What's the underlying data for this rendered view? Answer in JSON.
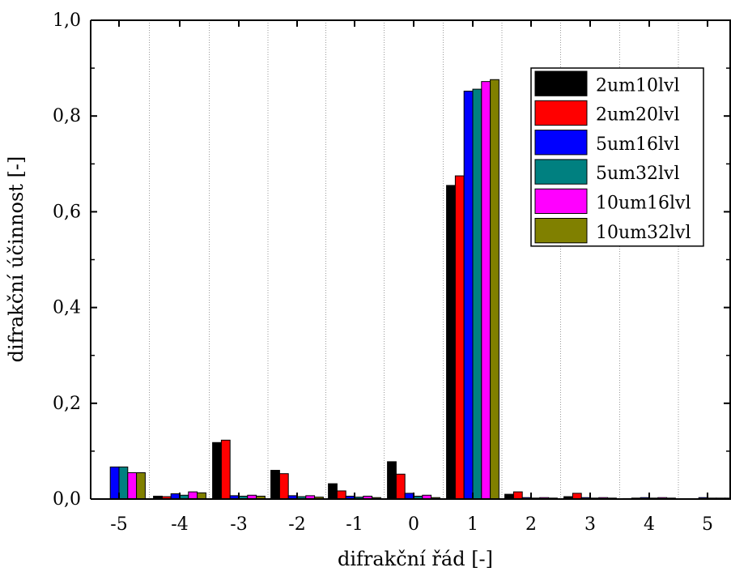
{
  "chart_data": {
    "type": "bar",
    "title": "",
    "xlabel": "difrakční řád [-]",
    "ylabel": "difrakční účinnost [-]",
    "categories": [
      "-5",
      "-4",
      "-3",
      "-2",
      "-1",
      "0",
      "1",
      "2",
      "3",
      "4",
      "5"
    ],
    "ylim": [
      0,
      1.0
    ],
    "yticks": [
      "0,0",
      "0,2",
      "0,4",
      "0,6",
      "0,8",
      "1,0"
    ],
    "grid": "vertical dotted",
    "legend_position": "top-right",
    "series": [
      {
        "name": "2um10lvl",
        "color": "#000000",
        "values": [
          null,
          0.006,
          0.118,
          0.06,
          0.032,
          0.078,
          0.655,
          0.01,
          0.005,
          0.001,
          0.0
        ]
      },
      {
        "name": "2um20lvl",
        "color": "#ff0000",
        "values": [
          null,
          0.005,
          0.123,
          0.053,
          0.017,
          0.052,
          0.675,
          0.015,
          0.012,
          0.002,
          0.0
        ]
      },
      {
        "name": "5um16lvl",
        "color": "#0000ff",
        "values": [
          0.067,
          0.011,
          0.007,
          0.007,
          0.006,
          0.012,
          0.852,
          0.003,
          0.003,
          0.003,
          0.003
        ]
      },
      {
        "name": "5um32lvl",
        "color": "#008080",
        "values": [
          0.067,
          0.008,
          0.006,
          0.005,
          0.004,
          0.006,
          0.856,
          0.002,
          0.002,
          0.002,
          0.002
        ]
      },
      {
        "name": "10um16lvl",
        "color": "#ff00ff",
        "values": [
          0.055,
          0.015,
          0.008,
          0.007,
          0.006,
          0.008,
          0.872,
          0.003,
          0.003,
          0.003,
          0.002
        ]
      },
      {
        "name": "10um32lvl",
        "color": "#808000",
        "values": [
          0.055,
          0.013,
          0.006,
          0.004,
          0.003,
          0.003,
          0.876,
          0.002,
          0.002,
          0.002,
          0.002
        ]
      }
    ]
  }
}
